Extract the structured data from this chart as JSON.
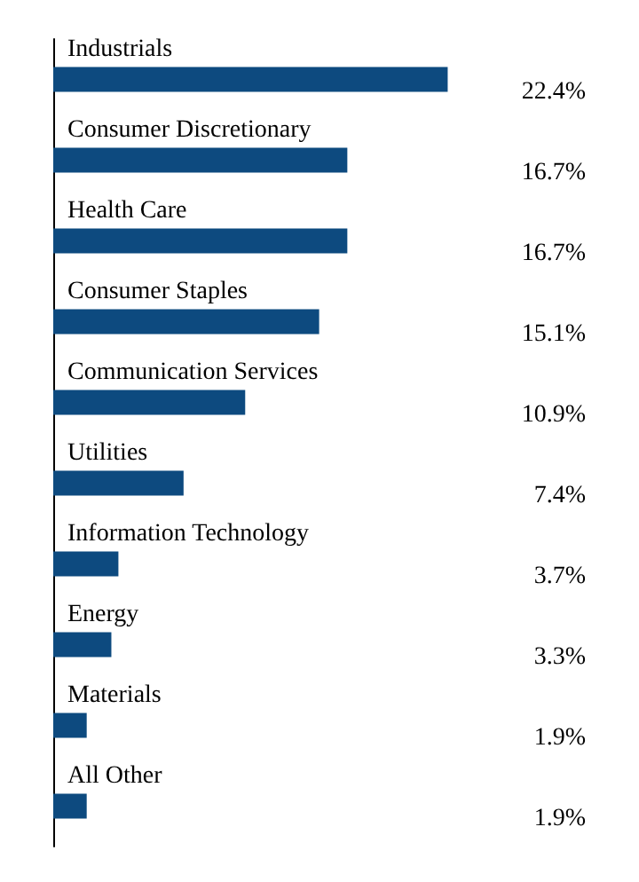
{
  "chart_data": {
    "type": "bar",
    "orientation": "horizontal",
    "categories": [
      "Industrials",
      "Consumer Discretionary",
      "Health Care",
      "Consumer Staples",
      "Communication Services",
      "Utilities",
      "Information Technology",
      "Energy",
      "Materials",
      "All Other"
    ],
    "values": [
      22.4,
      16.7,
      16.7,
      15.1,
      10.9,
      7.4,
      3.7,
      3.3,
      1.9,
      1.9
    ],
    "value_labels": [
      "22.4%",
      "16.7%",
      "16.7%",
      "15.1%",
      "10.9%",
      "7.4%",
      "3.7%",
      "3.3%",
      "1.9%",
      "1.9%"
    ],
    "color": "#0d4a7f"
  }
}
